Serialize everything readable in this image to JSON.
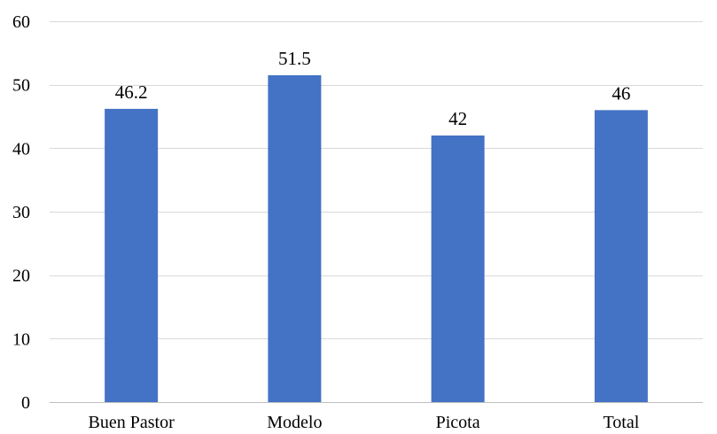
{
  "chart_data": {
    "type": "bar",
    "title": "",
    "xlabel": "",
    "ylabel": "",
    "categories": [
      "Buen Pastor",
      "Modelo",
      "Picota",
      "Total"
    ],
    "values": [
      46.2,
      51.5,
      42,
      46
    ],
    "data_labels": [
      "46.2",
      "51.5",
      "42",
      "46"
    ],
    "ylim": [
      0,
      60
    ],
    "yticks": [
      0,
      10,
      20,
      30,
      40,
      50,
      60
    ],
    "ytick_labels": [
      "0",
      "10",
      "20",
      "30",
      "40",
      "50",
      "60"
    ],
    "grid": true,
    "legend": "none",
    "bar_color": "#4472c4"
  }
}
